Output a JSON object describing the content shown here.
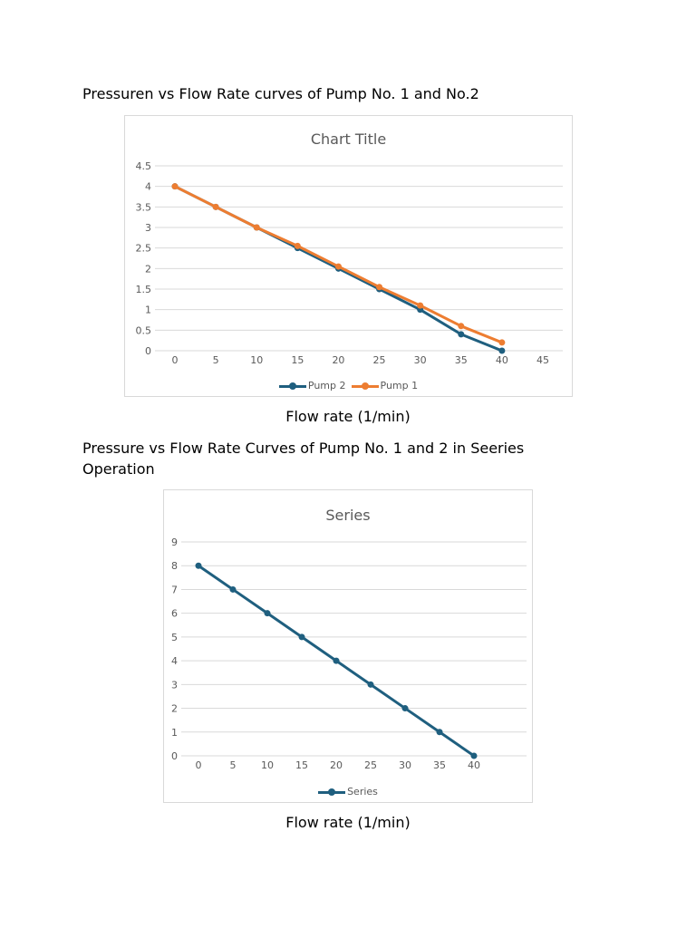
{
  "document": {
    "heading1": "Pressuren vs Flow Rate curves of Pump No. 1 and No.2",
    "caption1": "Flow rate (1/min)",
    "heading2_line1": "Pressure vs Flow Rate  Curves of Pump No. 1 and 2 in Seeries",
    "heading2_line2": "Operation",
    "caption2": "Flow rate (1/min)"
  },
  "colors": {
    "pump2": "#1f5f7f",
    "pump1": "#ed7d31",
    "series": "#1f5f7f",
    "grid": "#d9d9d9",
    "axis_text": "#595959"
  },
  "chart_data": [
    {
      "type": "line",
      "title": "Chart Title",
      "xlabel": "Flow rate (1/min)",
      "ylabel": "",
      "x": [
        0,
        5,
        10,
        15,
        20,
        25,
        30,
        35,
        40
      ],
      "xticks": [
        "0",
        "5",
        "10",
        "15",
        "20",
        "25",
        "30",
        "35",
        "40",
        "45"
      ],
      "xlim": [
        0,
        45
      ],
      "yticks": [
        "0",
        "0.5",
        "1",
        "1.5",
        "2",
        "2.5",
        "3",
        "3.5",
        "4",
        "4.5"
      ],
      "ylim": [
        0,
        4.5
      ],
      "grid": true,
      "legend_position": "bottom",
      "series": [
        {
          "name": "Pump 2",
          "color": "#1f5f7f",
          "values": [
            4,
            3.5,
            3,
            2.5,
            2,
            1.5,
            1,
            0.4,
            0
          ]
        },
        {
          "name": "Pump 1",
          "color": "#ed7d31",
          "values": [
            4,
            3.5,
            3,
            2.55,
            2.05,
            1.55,
            1.1,
            0.6,
            0.2
          ]
        }
      ]
    },
    {
      "type": "line",
      "title": "Series",
      "xlabel": "Flow rate (1/min)",
      "ylabel": "",
      "x": [
        0,
        5,
        10,
        15,
        20,
        25,
        30,
        35,
        40
      ],
      "xticks": [
        "0",
        "5",
        "10",
        "15",
        "20",
        "25",
        "30",
        "35",
        "40"
      ],
      "xlim": [
        0,
        40
      ],
      "yticks": [
        "0",
        "1",
        "2",
        "3",
        "4",
        "5",
        "6",
        "7",
        "8",
        "9"
      ],
      "ylim": [
        0,
        9
      ],
      "grid": true,
      "legend_position": "bottom",
      "series": [
        {
          "name": "Series",
          "color": "#1f5f7f",
          "values": [
            8,
            7,
            6,
            5,
            4,
            3,
            2,
            1,
            0
          ]
        }
      ]
    }
  ]
}
